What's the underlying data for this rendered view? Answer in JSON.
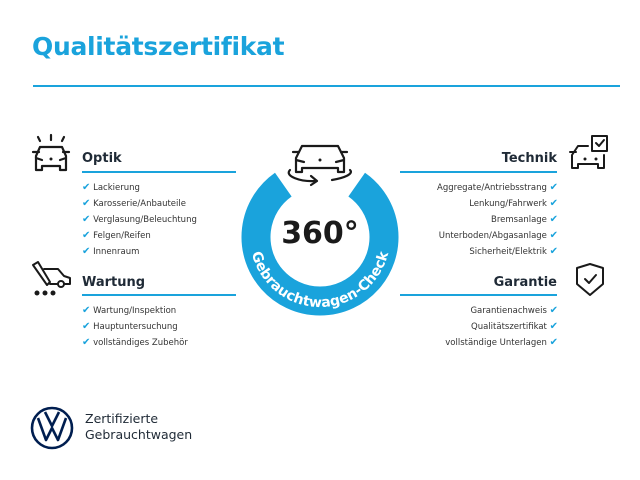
{
  "title": "Qualitätszertifikat",
  "colors": {
    "accent": "#1aa3dc",
    "text": "#1f2a36",
    "logo": "#001e50"
  },
  "center": {
    "value": "360°",
    "arc_text": "Gebrauchtwagen-Check",
    "icon": "car-rotate-icon"
  },
  "check_mark": "✔",
  "sections": {
    "optik": {
      "title": "Optik",
      "icon": "car-lights-icon",
      "items": [
        "Lackierung",
        "Karosserie/Anbauteile",
        "Verglasung/Beleuchtung",
        "Felgen/Reifen",
        "Innenraum"
      ]
    },
    "wartung": {
      "title": "Wartung",
      "icon": "car-service-icon",
      "items": [
        "Wartung/Inspektion",
        "Hauptuntersuchung",
        "vollständiges Zubehör"
      ]
    },
    "technik": {
      "title": "Technik",
      "icon": "car-checkbox-icon",
      "items": [
        "Aggregate/Antriebsstrang",
        "Lenkung/Fahrwerk",
        "Bremsanlage",
        "Unterboden/Abgasanlage",
        "Sicherheit/Elektrik"
      ]
    },
    "garantie": {
      "title": "Garantie",
      "icon": "shield-check-icon",
      "items": [
        "Garantienachweis",
        "Qualitätszertifikat",
        "vollständige Unterlagen"
      ]
    }
  },
  "footer": {
    "logo": "vw-logo",
    "line1": "Zertifizierte",
    "line2": "Gebrauchtwagen"
  }
}
